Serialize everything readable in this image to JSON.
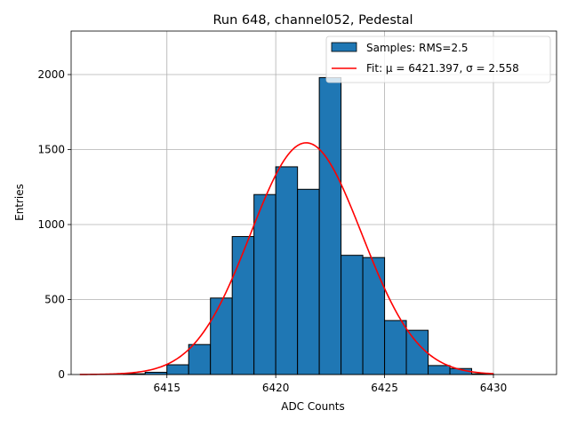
{
  "chart_data": {
    "type": "bar",
    "title": "Run 648, channel052, Pedestal",
    "xlabel": "ADC Counts",
    "ylabel": "Entries",
    "xlim": [
      6410.6,
      6432.9
    ],
    "ylim": [
      0,
      2290
    ],
    "xticks": [
      6415,
      6420,
      6425,
      6430
    ],
    "yticks": [
      0,
      500,
      1000,
      1500,
      2000
    ],
    "grid": true,
    "legend_position": "top-right",
    "colors": {
      "bars": "#1f77b4",
      "bar_edge": "#000000",
      "fit": "#ff0000",
      "grid": "#b0b0b0"
    },
    "histogram": {
      "name": "Samples: RMS=2.5",
      "bins": [
        {
          "x0": 6413,
          "x1": 6414,
          "count": 5
        },
        {
          "x0": 6414,
          "x1": 6415,
          "count": 15
        },
        {
          "x0": 6415,
          "x1": 6416,
          "count": 65
        },
        {
          "x0": 6416,
          "x1": 6417,
          "count": 200
        },
        {
          "x0": 6417,
          "x1": 6418,
          "count": 510
        },
        {
          "x0": 6418,
          "x1": 6419,
          "count": 920
        },
        {
          "x0": 6419,
          "x1": 6420,
          "count": 1200
        },
        {
          "x0": 6420,
          "x1": 6421,
          "count": 1385
        },
        {
          "x0": 6421,
          "x1": 6422,
          "count": 1235
        },
        {
          "x0": 6422,
          "x1": 6423,
          "count": 1980
        },
        {
          "x0": 6423,
          "x1": 6424,
          "count": 795
        },
        {
          "x0": 6424,
          "x1": 6425,
          "count": 780
        },
        {
          "x0": 6425,
          "x1": 6426,
          "count": 360
        },
        {
          "x0": 6426,
          "x1": 6427,
          "count": 295
        },
        {
          "x0": 6427,
          "x1": 6428,
          "count": 60
        },
        {
          "x0": 6428,
          "x1": 6429,
          "count": 40
        },
        {
          "x0": 6429,
          "x1": 6430,
          "count": 5
        }
      ]
    },
    "fit": {
      "name": "Fit: μ = 6421.397, σ = 2.558",
      "mu": 6421.397,
      "sigma": 2.558,
      "amplitude": 1545,
      "x_range": [
        6411,
        6430
      ]
    }
  }
}
